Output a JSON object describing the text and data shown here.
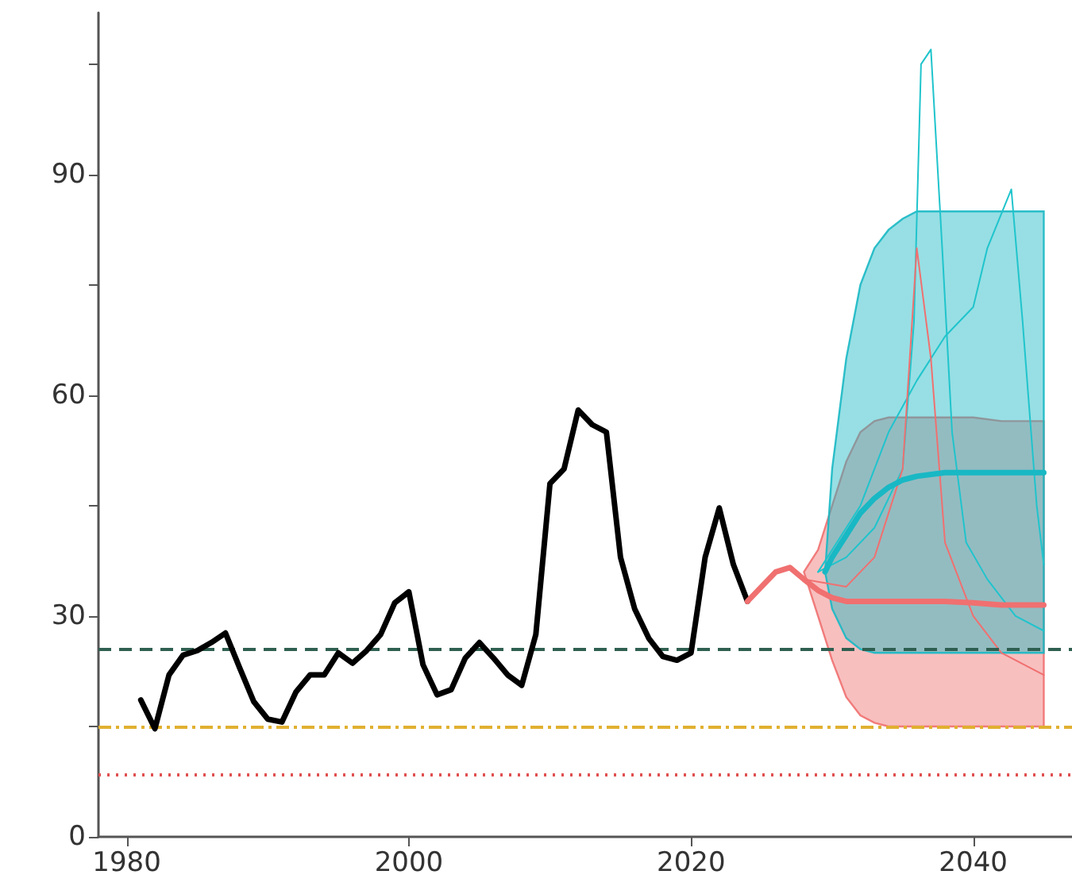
{
  "chart_data": {
    "type": "line",
    "xlim": [
      1978,
      2047
    ],
    "xticks": [
      1980,
      2000,
      2020,
      2040
    ],
    "ylim": [
      0,
      112
    ],
    "yticks": [
      0,
      {
        "value": 15,
        "label": null
      },
      30,
      {
        "value": 45,
        "label": null
      },
      60,
      {
        "value": 75,
        "label": null
      },
      90,
      {
        "value": 105,
        "label": null
      }
    ],
    "marker": "none",
    "line_style": "solid",
    "series": [
      {
        "color": "#000000",
        "x": [
          1981,
          1982,
          1983,
          1984,
          1985,
          1986,
          1987,
          1988,
          1989,
          1990,
          1991,
          1992,
          1993,
          1994,
          1995,
          1996,
          1997,
          1998,
          1999,
          2000,
          2001,
          2002,
          2003,
          2004,
          2005,
          2006,
          2007,
          2008,
          2009,
          2010,
          2011,
          2012,
          2013,
          2014,
          2015,
          2016,
          2017,
          2018,
          2019,
          2020,
          2021,
          2022,
          2023,
          2024
        ],
        "values": [
          18.6,
          14.7,
          22,
          24.7,
          25.3,
          26.4,
          27.7,
          23,
          18.4,
          16,
          15.6,
          19.7,
          22,
          22,
          25,
          23.6,
          25.3,
          27.5,
          31.8,
          33.3,
          23.4,
          19.3,
          20,
          24.3,
          26.4,
          24.3,
          22,
          20.6,
          27.5,
          48,
          50,
          58,
          56,
          55,
          38,
          31,
          27,
          24.5,
          24,
          25,
          38,
          44.7,
          37,
          32
        ]
      },
      {
        "color": "#20c4cc",
        "x": [
          2029,
          2031,
          2033,
          2035,
          2035.8,
          2036.3,
          2037,
          2037.8,
          2038.5,
          2039.5,
          2041,
          2043,
          2045
        ],
        "values": [
          36,
          38,
          42,
          50,
          70,
          105,
          107,
          80,
          55,
          40,
          35,
          30,
          28
        ]
      },
      {
        "color": "#20c4cc",
        "x": [
          2029,
          2032,
          2034,
          2036,
          2038,
          2040,
          2041,
          2042.7,
          2043.5,
          2044.5,
          2045
        ],
        "values": [
          36,
          45,
          55,
          62,
          68,
          72,
          80,
          88,
          70,
          45,
          37
        ]
      },
      {
        "color": "#f07070",
        "x": [
          2028,
          2031,
          2033,
          2035,
          2036,
          2037,
          2038,
          2040,
          2042,
          2045
        ],
        "values": [
          35,
          34,
          38,
          50,
          80,
          65,
          40,
          30,
          25,
          22
        ]
      },
      {
        "color": "#f07070",
        "x": [
          2024,
          2025,
          2026,
          2027,
          2028,
          2029,
          2030,
          2031,
          2032,
          2033,
          2034,
          2036,
          2038,
          2040,
          2042,
          2045
        ],
        "values": [
          32,
          34,
          36,
          36.6,
          35,
          33.5,
          32.5,
          32,
          32,
          32,
          32,
          32,
          32,
          31.8,
          31.5,
          31.5
        ],
        "lower": [
          null,
          null,
          null,
          null,
          36,
          30,
          24,
          19,
          16.5,
          15.5,
          15,
          15,
          15,
          15,
          15,
          15
        ],
        "upper": [
          null,
          null,
          null,
          null,
          36,
          39,
          45,
          51,
          55,
          56.5,
          57,
          57,
          57,
          57,
          56.5,
          56.5
        ]
      },
      {
        "color": "#18b8c4",
        "x": [
          2029.5,
          2030,
          2031,
          2032,
          2033,
          2034,
          2035,
          2036,
          2038,
          2040,
          2042,
          2045
        ],
        "values": [
          36,
          38,
          41,
          44,
          46,
          47.5,
          48.5,
          49,
          49.5,
          49.5,
          49.5,
          49.5
        ],
        "lower": [
          36,
          31,
          27,
          25.5,
          25,
          25,
          25,
          25,
          25,
          25,
          25,
          25
        ],
        "upper": [
          36,
          50,
          65,
          75,
          80,
          82.5,
          84,
          85,
          85,
          85,
          85,
          85
        ]
      }
    ],
    "ref_lines": [
      {
        "axis": "y",
        "value": 25.5,
        "color": "#2f5f50",
        "line_style": "dashed"
      },
      {
        "axis": "y",
        "value": 15,
        "color": "#e0b030",
        "line_style": "dashdot"
      },
      {
        "axis": "y",
        "value": 8.4,
        "color": "#e05050",
        "line_style": "dotted"
      }
    ]
  }
}
